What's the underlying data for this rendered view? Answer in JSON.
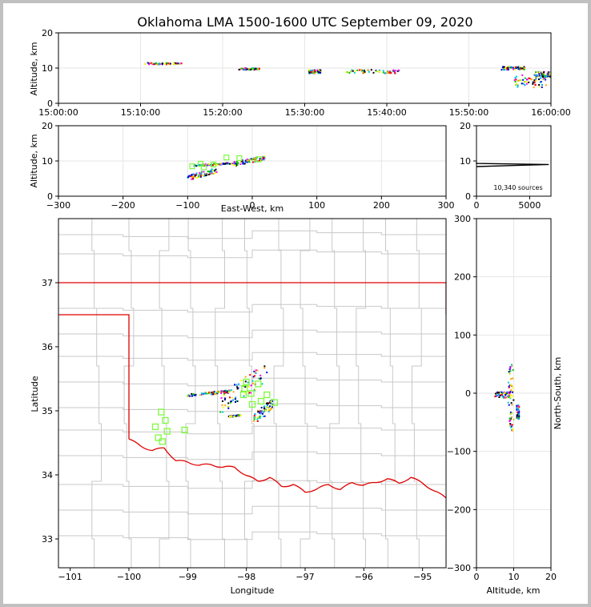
{
  "chart_data": [
    {
      "panel": "time-altitude",
      "type": "scatter",
      "title": "Oklahoma LMA 1500-1600 UTC September 09, 2020",
      "ylabel": "Altitude, km",
      "xlim": [
        "15:00:00",
        "16:00:00"
      ],
      "ylim": [
        0,
        20
      ],
      "xticks": [
        "15:00:00",
        "15:10:00",
        "15:20:00",
        "15:30:00",
        "15:40:00",
        "15:50:00",
        "16:00:00"
      ],
      "yticks": [
        "0",
        "10",
        "20"
      ],
      "grid": true,
      "clusters": [
        {
          "t_start": "15:10:30",
          "t_end": "15:15:00",
          "alt_min": 11,
          "alt_max": 11.5
        },
        {
          "t_start": "15:22:00",
          "t_end": "15:24:30",
          "alt_min": 9.5,
          "alt_max": 10
        },
        {
          "t_start": "15:30:30",
          "t_end": "15:32:00",
          "alt_min": 8.5,
          "alt_max": 9.5
        },
        {
          "t_start": "15:35:00",
          "t_end": "15:41:30",
          "alt_min": 8.5,
          "alt_max": 9.5
        },
        {
          "t_start": "15:54:00",
          "t_end": "15:57:00",
          "alt_min": 9.5,
          "alt_max": 10.5
        },
        {
          "t_start": "15:55:30",
          "t_end": "15:59:30",
          "alt_min": 4.5,
          "alt_max": 8
        },
        {
          "t_start": "15:58:00",
          "t_end": "16:00:00",
          "alt_min": 7,
          "alt_max": 9
        }
      ]
    },
    {
      "panel": "east-west-altitude",
      "type": "scatter",
      "xlabel": "East-West, km",
      "ylabel": "Altitude, km",
      "xlim": [
        -300,
        300
      ],
      "ylim": [
        0,
        20
      ],
      "xticks": [
        "−300",
        "−200",
        "−100",
        "0",
        "100",
        "200",
        "300"
      ],
      "yticks": [
        "0",
        "10",
        "20"
      ],
      "grid": true,
      "clusters": [
        {
          "x_min": -100,
          "x_max": -55,
          "alt_min": 4.5,
          "alt_max": 8
        },
        {
          "x_min": -90,
          "x_max": -30,
          "alt_min": 8.5,
          "alt_max": 9.5
        },
        {
          "x_min": -30,
          "x_max": 20,
          "alt_min": 8.5,
          "alt_max": 11.5
        }
      ],
      "stations": [
        {
          "x": -93,
          "alt": 8.5
        },
        {
          "x": -80,
          "alt": 9.2
        },
        {
          "x": -75,
          "alt": 8.2
        },
        {
          "x": -60,
          "alt": 9
        },
        {
          "x": -40,
          "alt": 11
        },
        {
          "x": -20,
          "alt": 10.8
        },
        {
          "x": 10,
          "alt": 10.5
        }
      ]
    },
    {
      "panel": "altitude-histogram",
      "type": "line",
      "xlim": [
        0,
        7000
      ],
      "ylim": [
        0,
        20
      ],
      "xticks": [
        "0",
        "5000"
      ],
      "yticks": [
        "0",
        "10",
        "20"
      ],
      "annotation": "10,340 sources",
      "curve": [
        {
          "count": 0,
          "alt": 8.4
        },
        {
          "count": 6800,
          "alt": 9.0
        },
        {
          "count": 0,
          "alt": 9.3
        },
        {
          "count": 0,
          "alt": 9.6
        }
      ]
    },
    {
      "panel": "plan-view",
      "type": "scatter",
      "xlabel": "Longitude",
      "ylabel": "Latitude",
      "xlim": [
        -101.2,
        -94.6
      ],
      "ylim": [
        32.55,
        38.0
      ],
      "xticks": [
        "−101",
        "−100",
        "−99",
        "−98",
        "−97",
        "−96",
        "−95"
      ],
      "yticks": [
        "33",
        "34",
        "35",
        "36",
        "37"
      ],
      "colors": {
        "state_border": "#e00000",
        "county_lines": "#c8c8c8",
        "station": "#7cfc3c"
      },
      "stations": [
        {
          "lon": -99.55,
          "lat": 34.75
        },
        {
          "lon": -99.45,
          "lat": 34.98
        },
        {
          "lon": -99.38,
          "lat": 34.85
        },
        {
          "lon": -99.5,
          "lat": 34.58
        },
        {
          "lon": -99.43,
          "lat": 34.52
        },
        {
          "lon": -99.35,
          "lat": 34.68
        },
        {
          "lon": -99.05,
          "lat": 34.7
        },
        {
          "lon": -98.0,
          "lat": 35.45
        },
        {
          "lon": -98.03,
          "lat": 35.35
        },
        {
          "lon": -97.8,
          "lat": 35.42
        },
        {
          "lon": -98.05,
          "lat": 35.25
        },
        {
          "lon": -97.92,
          "lat": 35.27
        },
        {
          "lon": -97.65,
          "lat": 35.25
        },
        {
          "lon": -97.75,
          "lat": 35.15
        },
        {
          "lon": -97.52,
          "lat": 35.13
        },
        {
          "lon": -97.9,
          "lat": 35.1
        }
      ],
      "clusters": [
        {
          "lon_min": -99.0,
          "lon_max": -98.2,
          "lat_min": 35.22,
          "lat_max": 35.33
        },
        {
          "lon_min": -98.45,
          "lon_max": -97.65,
          "lat_min": 34.95,
          "lat_max": 35.75
        },
        {
          "lon_min": -98.3,
          "lon_max": -98.1,
          "lat_min": 34.9,
          "lat_max": 34.94
        },
        {
          "lon_min": -97.9,
          "lon_max": -97.55,
          "lat_min": 34.75,
          "lat_max": 35.2
        }
      ]
    },
    {
      "panel": "altitude-north-south",
      "type": "scatter",
      "xlabel": "Altitude, km",
      "ylabel": "North-South, km",
      "xlim": [
        0,
        20
      ],
      "ylim": [
        -300,
        300
      ],
      "xticks": [
        "0",
        "10",
        "20"
      ],
      "yticks": [
        "−300",
        "−200",
        "−100",
        "0",
        "100",
        "200",
        "300"
      ],
      "grid": true,
      "clusters": [
        {
          "alt_min": 5,
          "alt_max": 9,
          "y_min": -8,
          "y_max": 2
        },
        {
          "alt_min": 8.5,
          "alt_max": 10,
          "y_min": -65,
          "y_max": 50
        },
        {
          "alt_min": 10.8,
          "alt_max": 11.5,
          "y_min": -45,
          "y_max": -20
        }
      ]
    }
  ]
}
